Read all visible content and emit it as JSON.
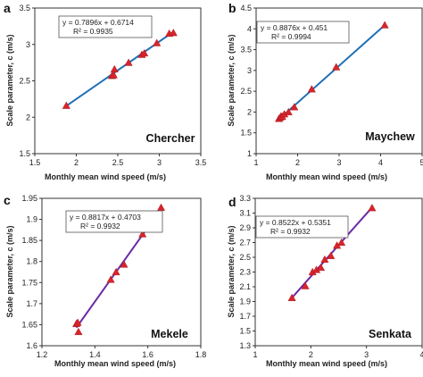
{
  "figure": {
    "ylabel": "Scale parameter, c (m/s)",
    "xlabel": "Monthly mean wind speed (m/s)"
  },
  "colors": {
    "marker": "#d8242c",
    "fit_blue": "#1f6fb5",
    "fit_purple": "#6a2aa3",
    "axis": "#333333",
    "text": "#222222"
  },
  "chart_data": [
    {
      "panel_letter": "a",
      "site": "Chercher",
      "type": "scatter",
      "xlim": [
        1.5,
        3.5
      ],
      "ylim": [
        1.5,
        3.5
      ],
      "xticks": [
        "1.5",
        "2",
        "2.5",
        "3",
        "3.5"
      ],
      "yticks": [
        "1.5",
        "2",
        "2.5",
        "3",
        "3.5"
      ],
      "equation": "y = 0.7896x + 0.6714",
      "r2": "R² = 0.9935",
      "slope": 0.7896,
      "intercept": 0.6714,
      "fit_x": [
        1.88,
        3.18
      ],
      "fit_color": "blue",
      "points": [
        [
          1.88,
          2.16
        ],
        [
          2.43,
          2.57
        ],
        [
          2.45,
          2.58
        ],
        [
          2.46,
          2.66
        ],
        [
          2.63,
          2.75
        ],
        [
          2.79,
          2.86
        ],
        [
          2.82,
          2.88
        ],
        [
          2.97,
          3.02
        ],
        [
          3.12,
          3.15
        ],
        [
          3.17,
          3.16
        ]
      ]
    },
    {
      "panel_letter": "b",
      "site": "Maychew",
      "type": "scatter",
      "xlim": [
        1,
        5
      ],
      "ylim": [
        1,
        4.5
      ],
      "xticks": [
        "1",
        "2",
        "3",
        "4",
        "5"
      ],
      "yticks": [
        "1",
        "1.5",
        "2",
        "2.5",
        "3",
        "3.5",
        "4",
        "4.5"
      ],
      "equation": "y = 0.8876x + 0.451",
      "r2": "R² = 0.9994",
      "slope": 0.8876,
      "intercept": 0.451,
      "fit_x": [
        1.55,
        4.1
      ],
      "fit_color": "blue",
      "points": [
        [
          1.55,
          1.84
        ],
        [
          1.58,
          1.87
        ],
        [
          1.6,
          1.9
        ],
        [
          1.63,
          1.89
        ],
        [
          1.68,
          1.95
        ],
        [
          1.78,
          2.0
        ],
        [
          1.92,
          2.12
        ],
        [
          2.34,
          2.55
        ],
        [
          2.93,
          3.08
        ],
        [
          4.1,
          4.09
        ]
      ]
    },
    {
      "panel_letter": "c",
      "site": "Mekele",
      "type": "scatter",
      "xlim": [
        1.2,
        1.8
      ],
      "ylim": [
        1.6,
        1.95
      ],
      "xticks": [
        "1.2",
        "1.4",
        "1.6",
        "1.8"
      ],
      "yticks": [
        "1.6",
        "1.65",
        "1.7",
        "1.75",
        "1.8",
        "1.85",
        "1.9",
        "1.95"
      ],
      "equation": "y = 0.8817x + 0.4703",
      "r2": "R² = 0.9932",
      "slope": 0.8817,
      "intercept": 0.4703,
      "fit_x": [
        1.33,
        1.65
      ],
      "fit_color": "purple",
      "points": [
        [
          1.33,
          1.652
        ],
        [
          1.335,
          1.655
        ],
        [
          1.338,
          1.633
        ],
        [
          1.46,
          1.757
        ],
        [
          1.48,
          1.775
        ],
        [
          1.51,
          1.793
        ],
        [
          1.58,
          1.865
        ],
        [
          1.65,
          1.928
        ]
      ]
    },
    {
      "panel_letter": "d",
      "site": "Senkata",
      "type": "scatter",
      "xlim": [
        1,
        4
      ],
      "ylim": [
        1.3,
        3.3
      ],
      "xticks": [
        "1",
        "2",
        "3",
        "4"
      ],
      "yticks": [
        "1.3",
        "1.5",
        "1.7",
        "1.9",
        "2.1",
        "2.3",
        "2.5",
        "2.7",
        "2.9",
        "3.1",
        "3.3"
      ],
      "equation": "y = 0.8522x + 0.5351",
      "r2": "R² = 0.9932",
      "slope": 0.8522,
      "intercept": 0.5351,
      "fit_x": [
        1.65,
        3.1
      ],
      "fit_color": "purple",
      "points": [
        [
          1.66,
          1.95
        ],
        [
          1.9,
          2.11
        ],
        [
          2.03,
          2.3
        ],
        [
          2.1,
          2.33
        ],
        [
          2.18,
          2.36
        ],
        [
          2.25,
          2.47
        ],
        [
          2.36,
          2.52
        ],
        [
          2.47,
          2.66
        ],
        [
          2.55,
          2.7
        ],
        [
          3.1,
          3.17
        ]
      ]
    }
  ]
}
